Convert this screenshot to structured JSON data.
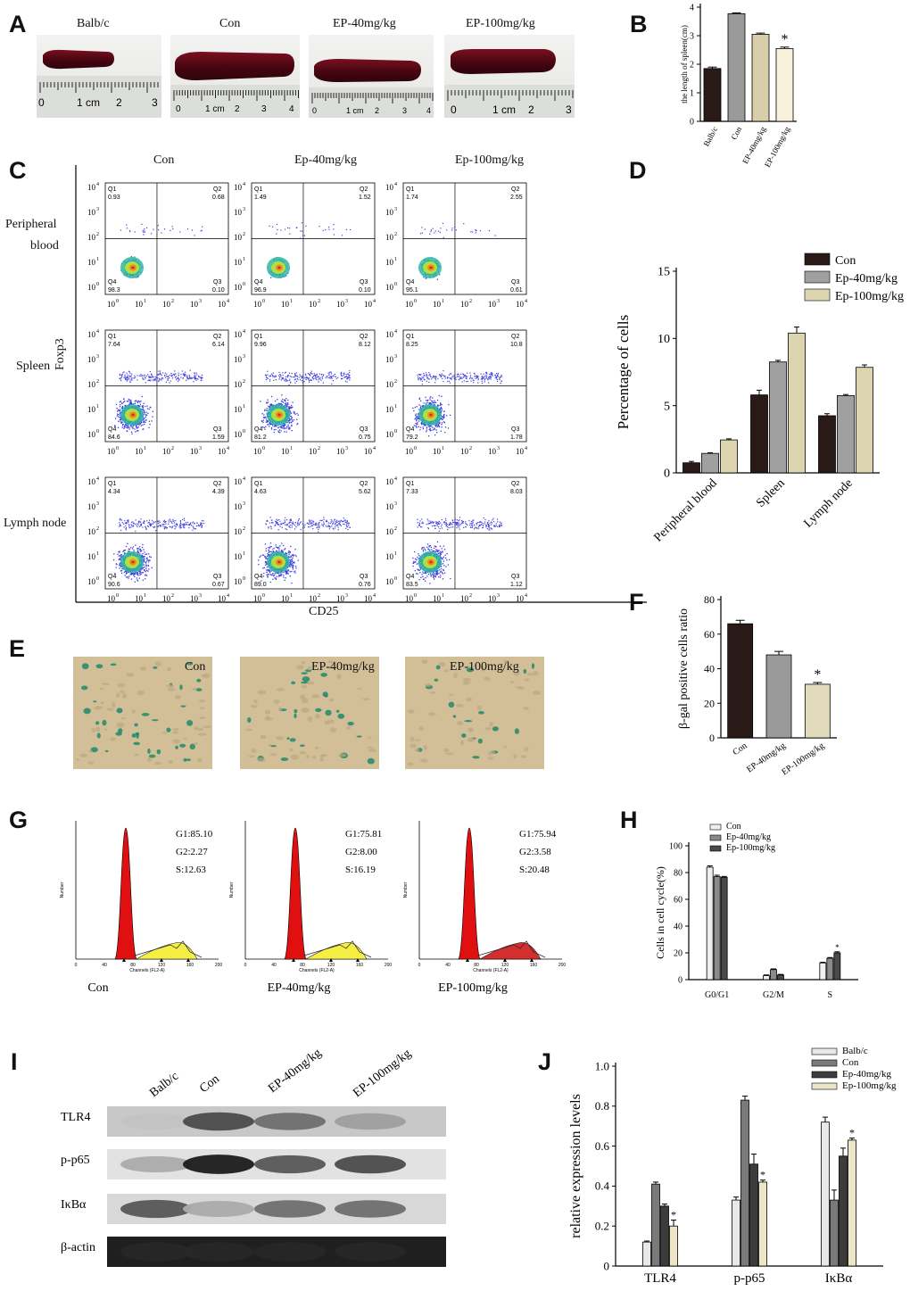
{
  "figure": {
    "letters": [
      "A",
      "B",
      "C",
      "D",
      "E",
      "F",
      "G",
      "H",
      "I",
      "J"
    ]
  },
  "panelA": {
    "labels": [
      "Balb/c",
      "Con",
      "EP-40mg/kg",
      "EP-100mg/kg"
    ],
    "ruler": [
      {
        "ticks": [
          "0",
          "1 cm",
          "2",
          "3"
        ]
      },
      {
        "ticks": [
          "0",
          "1 cm",
          "2",
          "3",
          "4"
        ]
      },
      {
        "ticks": [
          "0",
          "1 cm",
          "2",
          "3",
          "4"
        ]
      },
      {
        "ticks": [
          "0",
          "1 cm",
          "2",
          "3"
        ]
      }
    ]
  },
  "panelC": {
    "columns": [
      "Con",
      "Ep-40mg/kg",
      "Ep-100mg/kg"
    ],
    "rows": [
      "Peripheral blood",
      "Spleen",
      "Lymph node"
    ],
    "row_label_lines": [
      [
        "Peripheral",
        "blood"
      ],
      [
        "Spleen"
      ],
      [
        "Lymph node"
      ]
    ],
    "ylabel": "Foxp3",
    "xlabel": "CD25",
    "quadrants": [
      [
        {
          "Q1": "0.93",
          "Q2": "0.68",
          "Q3": "0.10",
          "Q4": "98.3"
        },
        {
          "Q1": "1.49",
          "Q2": "1.52",
          "Q3": "0.10",
          "Q4": "96.9"
        },
        {
          "Q1": "1.74",
          "Q2": "2.55",
          "Q3": "0.61",
          "Q4": "95.1"
        }
      ],
      [
        {
          "Q1": "7.64",
          "Q2": "6.14",
          "Q3": "1.59",
          "Q4": "84.6"
        },
        {
          "Q1": "9.96",
          "Q2": "8.12",
          "Q3": "0.75",
          "Q4": "81.2"
        },
        {
          "Q1": "8.25",
          "Q2": "10.8",
          "Q3": "1.78",
          "Q4": "79.2"
        }
      ],
      [
        {
          "Q1": "4.34",
          "Q2": "4.39",
          "Q3": "0.67",
          "Q4": "90.6"
        },
        {
          "Q1": "4.63",
          "Q2": "5.62",
          "Q3": "0.76",
          "Q4": "89.0"
        },
        {
          "Q1": "7.33",
          "Q2": "8.03",
          "Q3": "1.12",
          "Q4": "83.5"
        }
      ]
    ],
    "axis_ticks": [
      "10",
      "0",
      "1",
      "2",
      "3",
      "4"
    ]
  },
  "panelE": {
    "labels": [
      "Con",
      "EP-40mg/kg",
      "EP-100mg/kg"
    ]
  },
  "panelG": {
    "histograms": [
      {
        "caption": "Con",
        "stats": [
          "G1:85.10",
          "G2:2.27",
          "S:12.63"
        ]
      },
      {
        "caption": "EP-40mg/kg",
        "stats": [
          "G1:75.81",
          "G2:8.00",
          "S:16.19"
        ]
      },
      {
        "caption": "EP-100mg/kg",
        "stats": [
          "G1:75.94",
          "G2:3.58",
          "S:20.48"
        ]
      }
    ],
    "ylabel": "Number",
    "xlabel": "Channels (FL2-A)",
    "xticks": [
      "0",
      "40",
      "80",
      "120",
      "160",
      "200"
    ]
  },
  "panelI": {
    "lanes": [
      "Balb/c",
      "Con",
      "EP-40mg/kg",
      "EP-100mg/kg"
    ],
    "bands": [
      "TLR4",
      "p-p65",
      "IκBα",
      "β-actin"
    ]
  },
  "chart_data": [
    {
      "id": "B",
      "type": "bar",
      "categories": [
        "Balb/c",
        "Con",
        "EP-40mg/kg",
        "EP-100mg/kg"
      ],
      "values": [
        1.85,
        3.77,
        3.05,
        2.55
      ],
      "errors": [
        0.05,
        0.03,
        0.04,
        0.05
      ],
      "colors": [
        "#2a1a17",
        "#9a9a9a",
        "#d8cfaa",
        "#f7f1dc"
      ],
      "significance": [
        "",
        "",
        "",
        "*"
      ],
      "ylabel": "the length of spleen(cm)",
      "ylim": [
        0,
        4
      ],
      "yticks": [
        "0",
        "1",
        "2",
        "3",
        "4"
      ]
    },
    {
      "id": "D",
      "type": "bar",
      "categories": [
        "Peripheral blood",
        "Spleen",
        "Lymph node"
      ],
      "series": [
        {
          "name": "Con",
          "values": [
            0.75,
            5.8,
            4.25
          ],
          "errors": [
            0.1,
            0.35,
            0.15
          ],
          "color": "#2a1a17"
        },
        {
          "name": "Ep-40mg/kg",
          "values": [
            1.45,
            8.25,
            5.75
          ],
          "errors": [
            0.05,
            0.12,
            0.08
          ],
          "color": "#a0a0a0"
        },
        {
          "name": "Ep-100mg/kg",
          "values": [
            2.45,
            10.4,
            7.85
          ],
          "errors": [
            0.08,
            0.45,
            0.18
          ],
          "color": "#ddd5b0"
        }
      ],
      "ylabel": "Percentage of cells",
      "ylim": [
        0,
        15
      ],
      "yticks": [
        "0",
        "5",
        "10",
        "15"
      ]
    },
    {
      "id": "F",
      "type": "bar",
      "categories": [
        "Con",
        "EP-40mg/kg",
        "EP-100mg/kg"
      ],
      "values": [
        66,
        48,
        31
      ],
      "errors": [
        2,
        2,
        1
      ],
      "colors": [
        "#2a1a17",
        "#9a9a9a",
        "#e2dbbb"
      ],
      "significance": [
        "",
        "",
        "*"
      ],
      "ylabel": "β-gal positive cells ratio",
      "ylim": [
        0,
        80
      ],
      "yticks": [
        "0",
        "20",
        "40",
        "60",
        "80"
      ]
    },
    {
      "id": "H",
      "type": "bar",
      "categories": [
        "G0/G1",
        "G2/M",
        "S"
      ],
      "series": [
        {
          "name": "Con",
          "values": [
            84,
            3,
            12.5
          ],
          "errors": [
            1,
            0.5,
            0.5
          ],
          "color": "#efefef"
        },
        {
          "name": "Ep-40mg/kg",
          "values": [
            77,
            7.5,
            16
          ],
          "errors": [
            1,
            0.5,
            0.5
          ],
          "color": "#8a8a8a"
        },
        {
          "name": "Ep-100mg/kg",
          "values": [
            76.5,
            3.5,
            20
          ],
          "errors": [
            0.6,
            0.4,
            0.8
          ],
          "color": "#4a4a4a"
        }
      ],
      "significance": [
        "",
        "",
        "*"
      ],
      "ylabel": "Cells in cell cycle(%)",
      "ylim": [
        0,
        100
      ],
      "yticks": [
        "0",
        "20",
        "40",
        "60",
        "80",
        "100"
      ]
    },
    {
      "id": "J",
      "type": "bar",
      "categories": [
        "TLR4",
        "p-p65",
        "IκBα"
      ],
      "series": [
        {
          "name": "Balb/c",
          "values": [
            0.12,
            0.33,
            0.72
          ],
          "errors": [
            0.005,
            0.015,
            0.025
          ],
          "color": "#e8e8e8"
        },
        {
          "name": "Con",
          "values": [
            0.41,
            0.83,
            0.33
          ],
          "errors": [
            0.01,
            0.02,
            0.05
          ],
          "color": "#7a7a7a"
        },
        {
          "name": "Ep-40mg/kg",
          "values": [
            0.3,
            0.51,
            0.55
          ],
          "errors": [
            0.01,
            0.05,
            0.04
          ],
          "color": "#3c3c3c"
        },
        {
          "name": "Ep-100mg/kg",
          "values": [
            0.2,
            0.42,
            0.63
          ],
          "errors": [
            0.03,
            0.01,
            0.01
          ],
          "color": "#ece5c6"
        }
      ],
      "significance": [
        "*",
        "*",
        "*"
      ],
      "ylabel": "relative expression levels",
      "ylim": [
        0,
        1.0
      ],
      "yticks": [
        "0",
        "0.2",
        "0.4",
        "0.6",
        "0.8",
        "1.0"
      ]
    }
  ]
}
